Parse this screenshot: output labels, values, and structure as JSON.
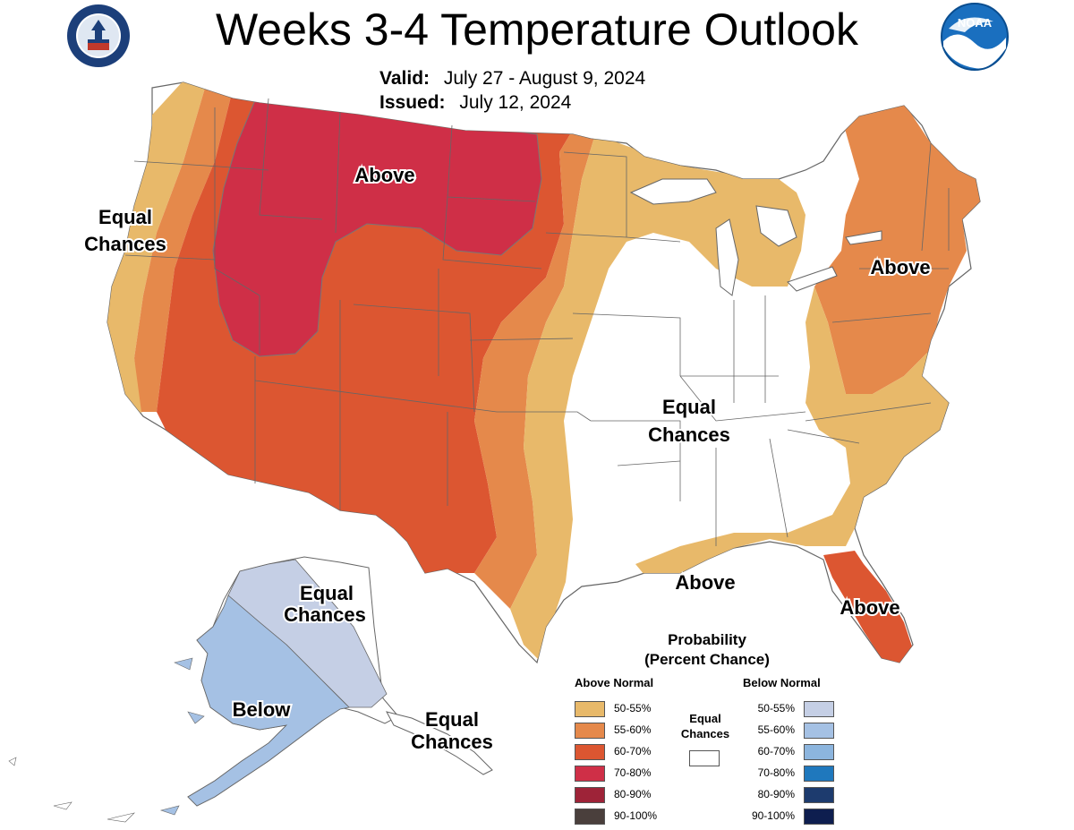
{
  "header": {
    "title": "Weeks 3-4 Temperature Outlook",
    "valid_label": "Valid:",
    "valid_value": "July 27 - August 9, 2024",
    "issued_label": "Issued:",
    "issued_value": "July 12, 2024"
  },
  "logos": {
    "left": "department-of-commerce-seal",
    "left_text": "DEPARTMENT OF COMMERCE · UNITED STATES OF AMERICA",
    "right": "noaa-logo",
    "right_text": "NOAA"
  },
  "map_labels": {
    "above_northwest": "Above",
    "equal_west_1": "Equal",
    "equal_west_2": "Chances",
    "above_northeast": "Above",
    "equal_center_1": "Equal",
    "equal_center_2": "Chances",
    "above_gulf": "Above",
    "above_florida": "Above",
    "alaska_equal_north_1": "Equal",
    "alaska_equal_north_2": "Chances",
    "alaska_below": "Below",
    "alaska_equal_south_1": "Equal",
    "alaska_equal_south_2": "Chances"
  },
  "legend": {
    "title_1": "Probability",
    "title_2": "(Percent Chance)",
    "above_header": "Above Normal",
    "below_header": "Below Normal",
    "equal_1": "Equal",
    "equal_2": "Chances",
    "above": [
      {
        "label": "50-55%",
        "color": "#e8b96a"
      },
      {
        "label": "55-60%",
        "color": "#e5894b"
      },
      {
        "label": "60-70%",
        "color": "#dc5631"
      },
      {
        "label": "70-80%",
        "color": "#cf2f47"
      },
      {
        "label": "80-90%",
        "color": "#9e2338"
      },
      {
        "label": "90-100%",
        "color": "#4a3f3c"
      }
    ],
    "below": [
      {
        "label": "50-55%",
        "color": "#c5cfe5"
      },
      {
        "label": "55-60%",
        "color": "#a5c1e4"
      },
      {
        "label": "60-70%",
        "color": "#8cb5de"
      },
      {
        "label": "70-80%",
        "color": "#1f78bd"
      },
      {
        "label": "80-90%",
        "color": "#1d3b6e"
      },
      {
        "label": "90-100%",
        "color": "#0e1e4f"
      }
    ],
    "equal_color": "#ffffff"
  },
  "colors": {
    "above_50_55": "#e8b96a",
    "above_55_60": "#e5894b",
    "above_60_70": "#dc5631",
    "above_70_80": "#cf2f47",
    "below_50_55": "#c5cfe5",
    "below_55_60": "#a5c1e4",
    "border": "#555555"
  }
}
